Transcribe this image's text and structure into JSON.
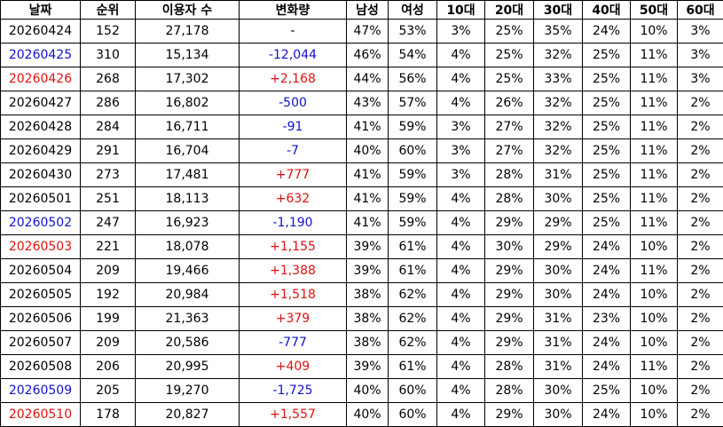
{
  "table": {
    "columns": [
      "날짜",
      "순위",
      "이용자 수",
      "변화량",
      "남성",
      "여성",
      "10대",
      "20대",
      "30대",
      "40대",
      "50대",
      "60대"
    ],
    "rows": [
      [
        "20260424",
        "152",
        "27,178",
        "-",
        "47%",
        "53%",
        "3%",
        "25%",
        "35%",
        "24%",
        "10%",
        "3%"
      ],
      [
        "20260425",
        "310",
        "15,134",
        "-12,044",
        "46%",
        "54%",
        "4%",
        "25%",
        "32%",
        "25%",
        "11%",
        "3%"
      ],
      [
        "20260426",
        "268",
        "17,302",
        "+2,168",
        "44%",
        "56%",
        "4%",
        "25%",
        "33%",
        "25%",
        "11%",
        "3%"
      ],
      [
        "20260427",
        "286",
        "16,802",
        "-500",
        "43%",
        "57%",
        "4%",
        "26%",
        "32%",
        "25%",
        "11%",
        "2%"
      ],
      [
        "20260428",
        "284",
        "16,711",
        "-91",
        "41%",
        "59%",
        "3%",
        "27%",
        "32%",
        "25%",
        "11%",
        "2%"
      ],
      [
        "20260429",
        "291",
        "16,704",
        "-7",
        "40%",
        "60%",
        "3%",
        "27%",
        "32%",
        "25%",
        "11%",
        "2%"
      ],
      [
        "20260430",
        "273",
        "17,481",
        "+777",
        "41%",
        "59%",
        "3%",
        "28%",
        "31%",
        "25%",
        "11%",
        "2%"
      ],
      [
        "20260501",
        "251",
        "18,113",
        "+632",
        "41%",
        "59%",
        "4%",
        "28%",
        "30%",
        "25%",
        "11%",
        "2%"
      ],
      [
        "20260502",
        "247",
        "16,923",
        "-1,190",
        "41%",
        "59%",
        "4%",
        "29%",
        "29%",
        "25%",
        "11%",
        "2%"
      ],
      [
        "20260503",
        "221",
        "18,078",
        "+1,155",
        "39%",
        "61%",
        "4%",
        "30%",
        "29%",
        "24%",
        "10%",
        "2%"
      ],
      [
        "20260504",
        "209",
        "19,466",
        "+1,388",
        "39%",
        "61%",
        "4%",
        "29%",
        "30%",
        "24%",
        "11%",
        "2%"
      ],
      [
        "20260505",
        "192",
        "20,984",
        "+1,518",
        "38%",
        "62%",
        "4%",
        "29%",
        "30%",
        "24%",
        "10%",
        "2%"
      ],
      [
        "20260506",
        "199",
        "21,363",
        "+379",
        "38%",
        "62%",
        "4%",
        "29%",
        "31%",
        "23%",
        "10%",
        "2%"
      ],
      [
        "20260507",
        "209",
        "20,586",
        "-777",
        "38%",
        "62%",
        "4%",
        "29%",
        "31%",
        "24%",
        "10%",
        "2%"
      ],
      [
        "20260508",
        "206",
        "20,995",
        "+409",
        "39%",
        "61%",
        "4%",
        "28%",
        "31%",
        "24%",
        "11%",
        "2%"
      ],
      [
        "20260509",
        "205",
        "19,270",
        "-1,725",
        "40%",
        "60%",
        "4%",
        "28%",
        "30%",
        "25%",
        "10%",
        "2%"
      ],
      [
        "20260510",
        "178",
        "20,827",
        "+1,557",
        "40%",
        "60%",
        "4%",
        "29%",
        "30%",
        "24%",
        "10%",
        "2%"
      ]
    ],
    "date_colors": [
      "#000000",
      "#1010d0",
      "#e01010",
      "#000000",
      "#000000",
      "#000000",
      "#000000",
      "#000000",
      "#1010d0",
      "#e01010",
      "#000000",
      "#000000",
      "#000000",
      "#000000",
      "#000000",
      "#1010d0",
      "#e01010"
    ],
    "change_colors": [
      "#000000",
      "#1010d0",
      "#e01010",
      "#1010d0",
      "#1010d0",
      "#1010d0",
      "#e01010",
      "#e01010",
      "#1010d0",
      "#e01010",
      "#e01010",
      "#e01010",
      "#e01010",
      "#1010d0",
      "#e01010",
      "#1010d0",
      "#e01010"
    ]
  }
}
